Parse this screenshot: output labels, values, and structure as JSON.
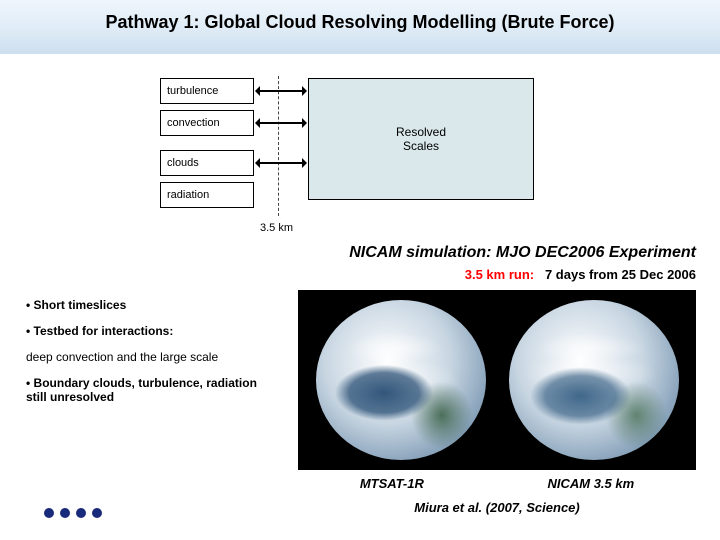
{
  "title": "Pathway 1: Global Cloud Resolving Modelling (Brute Force)",
  "diagram": {
    "processes": {
      "turbulence": "turbulence",
      "convection": "convection",
      "clouds": "clouds",
      "radiation": "radiation"
    },
    "resolved_line1": "Resolved",
    "resolved_line2": "Scales",
    "scale_break": "3.5 km",
    "colors": {
      "resolved_bg": "#dae8eb",
      "arrow": "#000000",
      "dashed": "#444444"
    }
  },
  "section_heading": "NICAM simulation: MJO DEC2006 Experiment",
  "run_line": {
    "red": "3.5 km run:",
    "black": "7 days from 25 Dec 2006"
  },
  "bullets": {
    "b1": "• Short timeslices",
    "b2": "• Testbed for interactions:",
    "b2_sub": "deep convection and the large scale",
    "b3": "• Boundary clouds, turbulence, radiation still unresolved"
  },
  "figure": {
    "left_label": "MTSAT-1R",
    "right_label": "NICAM 3.5 km",
    "citation": "Miura et al. (2007, Science)",
    "panel_bg": "#000000"
  },
  "dots": {
    "count": 4,
    "color": "#1a2a7a"
  }
}
